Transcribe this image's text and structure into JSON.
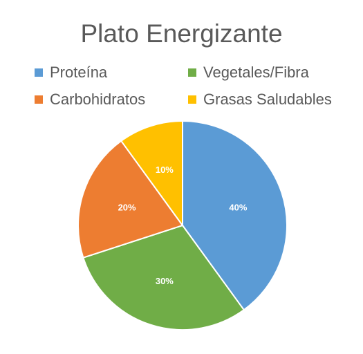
{
  "chart_data": {
    "type": "pie",
    "title": "Plato Energizante",
    "legend_position": "top",
    "slices": [
      {
        "name": "Proteína",
        "value": 40,
        "label": "40%",
        "color": "#5B9BD5"
      },
      {
        "name": "Vegetales/Fibra",
        "value": 30,
        "label": "30%",
        "color": "#70AD47"
      },
      {
        "name": "Carbohidratos",
        "value": 20,
        "label": "20%",
        "color": "#ED7D31"
      },
      {
        "name": "Grasas Saludables",
        "value": 10,
        "label": "10%",
        "color": "#FFC000"
      }
    ]
  }
}
